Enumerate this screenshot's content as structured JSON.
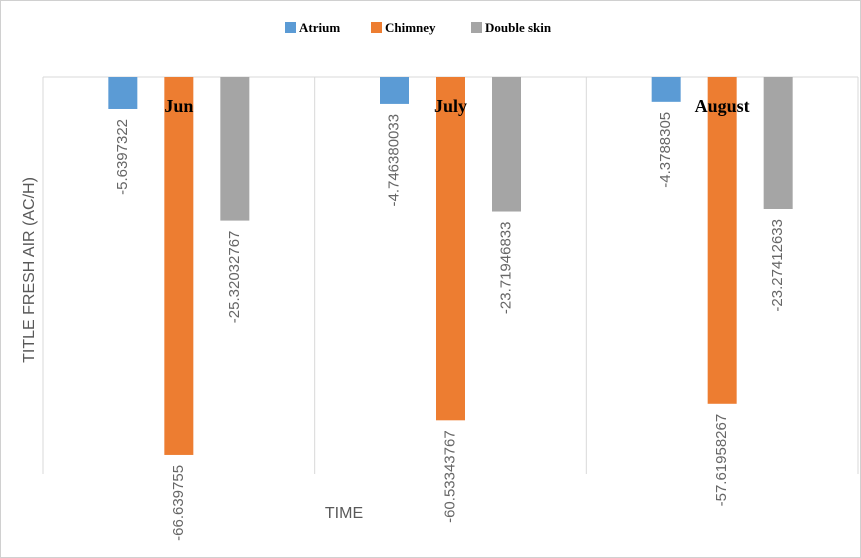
{
  "chart_data": {
    "type": "bar",
    "y_label": "TITLE FRESH AIR (AC/H)",
    "x_label": "TIME",
    "categories": [
      "Jun",
      "July",
      "August"
    ],
    "series": [
      {
        "name": "Atrium",
        "color": "#5b9bd5",
        "values": [
          -5.6397322,
          -4.746380033,
          -4.3788305
        ]
      },
      {
        "name": "Chimney",
        "color": "#ed7d31",
        "values": [
          -66.639755,
          -60.53343767,
          -57.61958267
        ]
      },
      {
        "name": "Double skin",
        "color": "#a5a5a5",
        "values": [
          -25.32032767,
          -23.71946833,
          -23.27412633
        ]
      }
    ],
    "ylim": [
      -70,
      0
    ]
  }
}
